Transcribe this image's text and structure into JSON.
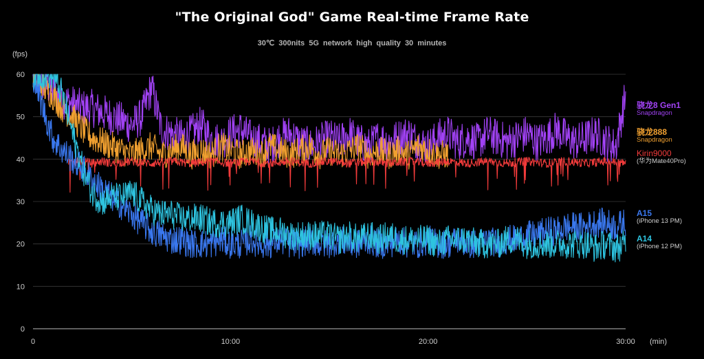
{
  "title": "\"The Original God\" Game Real-time Frame Rate",
  "subtitle": "30℃  300nits  5G network  high quality  30 minutes",
  "chart_data": {
    "type": "line",
    "ylabel": "(fps)",
    "xlabel": "(min)",
    "xlim": [
      0,
      30
    ],
    "ylim": [
      0,
      60
    ],
    "y_ticks": [
      "0",
      "10",
      "20",
      "30",
      "40",
      "50",
      "60"
    ],
    "y_tick_values": [
      0,
      10,
      20,
      30,
      40,
      50,
      60
    ],
    "x_ticks": [
      "0",
      "10:00",
      "20:00",
      "30:00"
    ],
    "x_tick_values": [
      0,
      10,
      20,
      30
    ],
    "grid": true,
    "legend_position": "right",
    "series": [
      {
        "name": "骁龙8 Gen1",
        "sub": "Snapdragon",
        "color": "#a142f4",
        "x": [
          0,
          0.5,
          1,
          1.5,
          2,
          2.5,
          3,
          3.5,
          4,
          4.5,
          5,
          5.5,
          6,
          6.5,
          7,
          7.5,
          8,
          8.5,
          9,
          9.5,
          10,
          10.5,
          11,
          11.5,
          12,
          12.5,
          13,
          13.5,
          14,
          14.5,
          15,
          15.5,
          16,
          16.5,
          17,
          17.5,
          18,
          18.5,
          19,
          19.5,
          20,
          20.5,
          21,
          21.5,
          22,
          22.5,
          23,
          23.5,
          24,
          24.5,
          25,
          25.5,
          26,
          26.5,
          27,
          27.5,
          28,
          28.5,
          29,
          29.5,
          30
        ],
        "y": [
          60,
          58,
          56,
          54,
          53,
          52,
          52,
          51,
          50,
          49,
          48,
          50,
          57,
          47,
          46,
          45,
          46,
          48,
          45,
          44,
          46,
          47,
          45,
          44,
          43,
          45,
          46,
          44,
          43,
          44,
          45,
          44,
          46,
          44,
          43,
          45,
          44,
          45,
          46,
          44,
          43,
          45,
          46,
          44,
          45,
          44,
          46,
          45,
          44,
          45,
          46,
          44,
          45,
          47,
          45,
          44,
          45,
          46,
          44,
          43,
          55
        ]
      },
      {
        "name": "骁龙888",
        "sub": "Snapdragon",
        "color": "#f0a030",
        "x": [
          0,
          0.5,
          1,
          1.5,
          2,
          2.5,
          3,
          3.5,
          4,
          4.5,
          5,
          5.5,
          6,
          6.5,
          7,
          7.5,
          8,
          8.5,
          9,
          9.5,
          10,
          10.5,
          11,
          11.5,
          12,
          12.5,
          13,
          13.5,
          14,
          14.5,
          15,
          15.5,
          16,
          16.5,
          17,
          17.5,
          18,
          18.5,
          19,
          19.5,
          20,
          20.5,
          21
        ],
        "y": [
          60,
          57,
          55,
          52,
          50,
          47,
          45,
          44,
          43,
          42,
          41,
          42,
          43,
          41,
          42,
          43,
          41,
          42,
          41,
          43,
          42,
          41,
          42,
          41,
          43,
          42,
          41,
          42,
          43,
          41,
          42,
          41,
          42,
          43,
          41,
          42,
          41,
          42,
          41,
          43,
          42,
          41,
          41
        ]
      },
      {
        "name": "Kirin9000",
        "sub": "(华为Mate40Pro)",
        "color": "#f23b3b",
        "x": [
          1.8,
          2.5,
          3,
          3.5,
          4,
          5,
          6,
          7,
          8,
          9,
          10,
          11,
          12,
          13,
          14,
          15,
          16,
          17,
          18,
          19,
          20,
          21,
          22,
          23,
          24,
          25,
          26,
          27,
          28,
          29,
          30
        ],
        "y": [
          39,
          39.5,
          39,
          39.5,
          39,
          39.5,
          39,
          39.5,
          39,
          39.5,
          39,
          39.5,
          39,
          39.5,
          39,
          39.5,
          39,
          39.5,
          39,
          39.5,
          39,
          39.5,
          39,
          39.5,
          39,
          39.5,
          39,
          39.5,
          39,
          39.5,
          39
        ]
      },
      {
        "name": "A15",
        "sub": "(iPhone 13 PM)",
        "color": "#3a78ef",
        "x": [
          0,
          0.5,
          1,
          1.5,
          2,
          2.5,
          3,
          3.5,
          4,
          4.5,
          5,
          5.5,
          6,
          6.5,
          7,
          7.5,
          8,
          8.5,
          9,
          9.5,
          10,
          10.5,
          11,
          11.5,
          12,
          12.5,
          13,
          13.5,
          14,
          14.5,
          15,
          15.5,
          16,
          16.5,
          17,
          17.5,
          18,
          18.5,
          19,
          19.5,
          20,
          20.5,
          21,
          21.5,
          22,
          22.5,
          23,
          23.5,
          24,
          24.5,
          25,
          25.5,
          26,
          26.5,
          27,
          27.5,
          28,
          28.5,
          29,
          29.5,
          30
        ],
        "y": [
          60,
          52,
          45,
          42,
          40,
          38,
          35,
          33,
          31,
          29,
          27,
          25,
          23,
          22,
          21,
          21,
          20,
          20,
          20,
          21,
          20,
          20,
          21,
          20,
          20,
          21,
          20,
          20,
          21,
          20,
          20,
          21,
          20,
          20,
          21,
          20,
          20,
          21,
          20,
          20,
          21,
          20,
          20,
          21,
          20,
          20,
          21,
          20,
          21,
          21,
          22,
          22,
          23,
          23,
          24,
          24,
          24,
          25,
          25,
          24,
          25
        ]
      },
      {
        "name": "A14",
        "sub": "(iPhone 12 PM)",
        "color": "#2ec3df",
        "x": [
          0,
          0.5,
          1,
          1.5,
          2,
          2.5,
          3,
          3.5,
          4,
          4.5,
          5,
          5.5,
          6,
          6.5,
          7,
          7.5,
          8,
          8.5,
          9,
          9.5,
          10,
          10.5,
          11,
          11.5,
          12,
          12.5,
          13,
          13.5,
          14,
          14.5,
          15,
          15.5,
          16,
          16.5,
          17,
          17.5,
          18,
          18.5,
          19,
          19.5,
          20,
          20.5,
          21,
          21.5,
          22,
          22.5,
          23,
          23.5,
          24,
          24.5,
          25,
          25.5,
          26,
          26.5,
          27,
          27.5,
          28,
          28.5,
          29,
          29.5,
          30
        ],
        "y": [
          60,
          60,
          60,
          55,
          46,
          38,
          32,
          30,
          31,
          31,
          32,
          30,
          28,
          27,
          27,
          26,
          26,
          26,
          25,
          25,
          25,
          26,
          25,
          24,
          23,
          23,
          22,
          22,
          22,
          22,
          22,
          21,
          22,
          21,
          22,
          21,
          22,
          21,
          21,
          21,
          21,
          20,
          21,
          21,
          21,
          20,
          20,
          20,
          21,
          21,
          20,
          20,
          20,
          20,
          20,
          20,
          20,
          19,
          20,
          19,
          20
        ]
      }
    ]
  }
}
